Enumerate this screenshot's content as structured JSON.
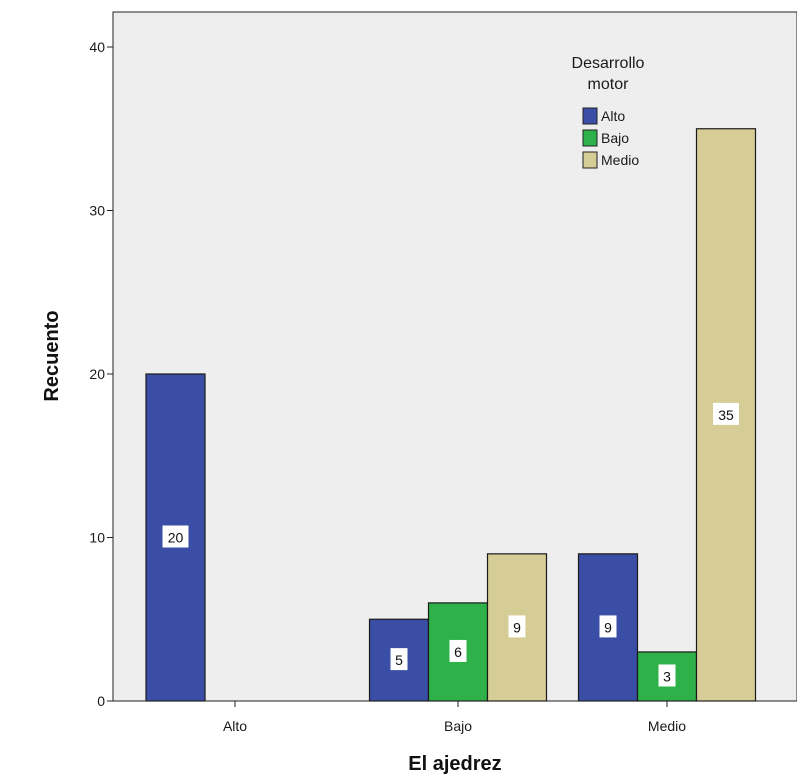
{
  "chart_data": {
    "type": "bar",
    "categories": [
      "Alto",
      "Bajo",
      "Medio"
    ],
    "series": [
      {
        "name": "Alto",
        "values": [
          20,
          5,
          9
        ]
      },
      {
        "name": "Bajo",
        "values": [
          null,
          6,
          3
        ]
      },
      {
        "name": "Medio",
        "values": [
          null,
          9,
          35
        ]
      }
    ],
    "xlabel": "El ajedrez",
    "ylabel": "Recuento",
    "ylim": [
      0,
      40
    ],
    "yticks": [
      0,
      10,
      20,
      30,
      40
    ],
    "legend": {
      "title_lines": [
        "Desarrollo",
        "motor"
      ],
      "placement": "top-right-inside"
    },
    "data_labels": true,
    "grid": false,
    "colors": {
      "series": [
        "#3a4ea6",
        "#2fb14a",
        "#d6cc96"
      ],
      "plot_background": "#eeeeee",
      "bar_edge": "#1a1a1a"
    }
  }
}
